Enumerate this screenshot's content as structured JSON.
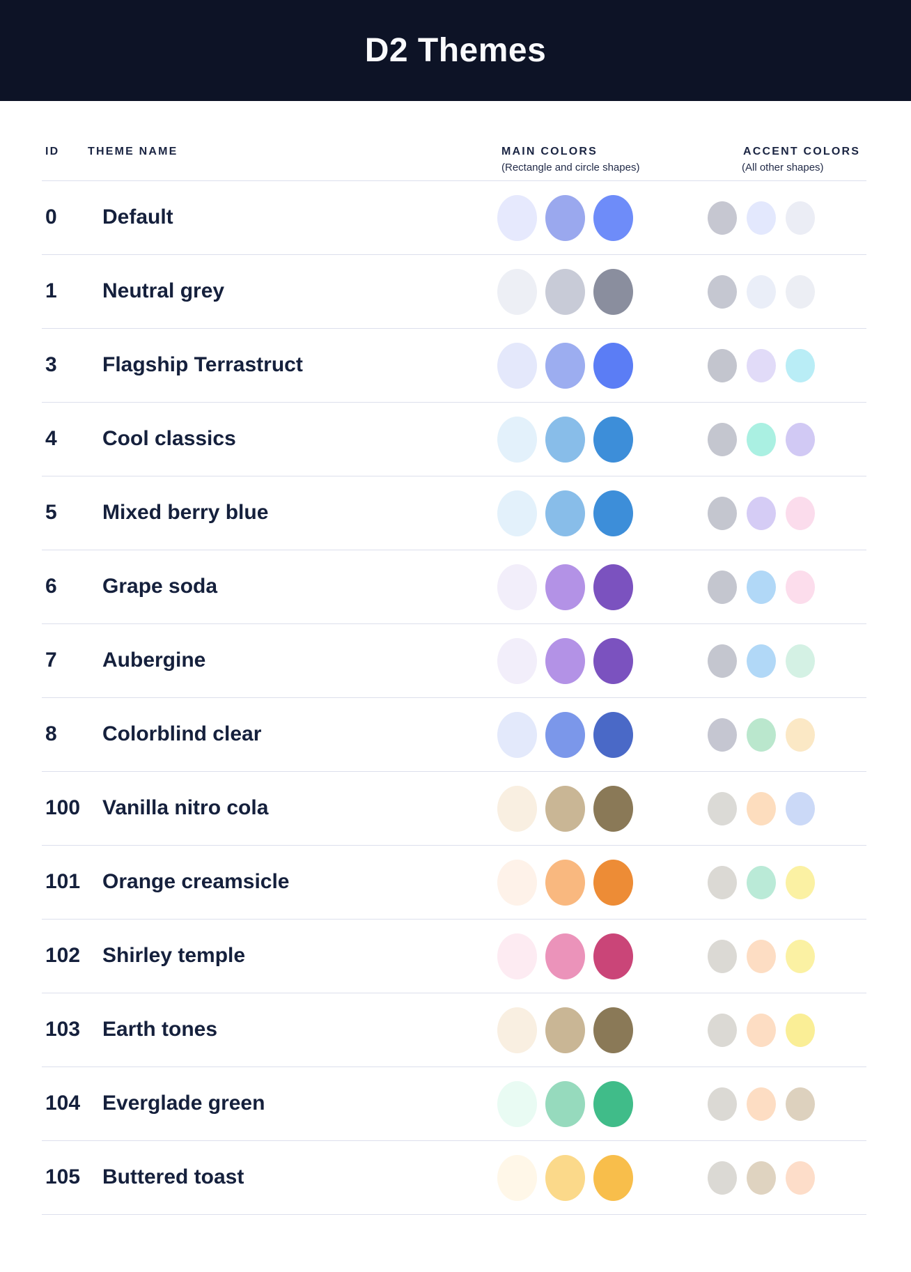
{
  "header": {
    "title": "D2 Themes"
  },
  "table": {
    "columns": {
      "id_label": "ID",
      "name_label": "THEME NAME",
      "main_label": "MAIN COLORS",
      "main_subtitle": "(Rectangle and circle shapes)",
      "accent_label": "ACCENT COLORS",
      "accent_subtitle": "(All other shapes)"
    },
    "rows": [
      {
        "id": "0",
        "name": "Default",
        "main": [
          "#E6E9FD",
          "#9AA8EE",
          "#6E8CF9"
        ],
        "accent": [
          "#C6C7D1",
          "#E3E8FD",
          "#EBEDF5"
        ]
      },
      {
        "id": "1",
        "name": "Neutral grey",
        "main": [
          "#EDEFF5",
          "#C8CBD7",
          "#8A8E9E"
        ],
        "accent": [
          "#C5C7D1",
          "#EAEEF8",
          "#ECEEF4"
        ]
      },
      {
        "id": "3",
        "name": "Flagship Terrastruct",
        "main": [
          "#E4E8FB",
          "#9CADF0",
          "#5B7DF5"
        ],
        "accent": [
          "#C3C5CE",
          "#E1DBF8",
          "#B9EDF6"
        ]
      },
      {
        "id": "4",
        "name": "Cool classics",
        "main": [
          "#E3F1FB",
          "#88BDE9",
          "#3D8ED9"
        ],
        "accent": [
          "#C4C6CF",
          "#AAF0E2",
          "#D1C9F4"
        ]
      },
      {
        "id": "5",
        "name": "Mixed berry blue",
        "main": [
          "#E3F1FB",
          "#88BDE9",
          "#3D8ED9"
        ],
        "accent": [
          "#C4C6CF",
          "#D5CCF5",
          "#FBDCEC"
        ]
      },
      {
        "id": "6",
        "name": "Grape soda",
        "main": [
          "#F2EEFA",
          "#B392E6",
          "#7B52BF"
        ],
        "accent": [
          "#C4C6CF",
          "#B1D8F7",
          "#FCDDEC"
        ]
      },
      {
        "id": "7",
        "name": "Aubergine",
        "main": [
          "#F2EEFA",
          "#B392E6",
          "#7B52BF"
        ],
        "accent": [
          "#C4C6CF",
          "#B1D8F7",
          "#D4F1E4"
        ]
      },
      {
        "id": "8",
        "name": "Colorblind clear",
        "main": [
          "#E3E9FB",
          "#7B97EA",
          "#4A69C7"
        ],
        "accent": [
          "#C5C6D1",
          "#BAE7CD",
          "#FBE8C5"
        ]
      },
      {
        "id": "100",
        "name": "Vanilla nitro cola",
        "main": [
          "#F9EFE1",
          "#C9B695",
          "#8A7957"
        ],
        "accent": [
          "#DBDAD6",
          "#FDDDBE",
          "#CBD9F7"
        ]
      },
      {
        "id": "101",
        "name": "Orange creamsicle",
        "main": [
          "#FEF2E9",
          "#F9B87F",
          "#ED8C36"
        ],
        "accent": [
          "#DBD9D4",
          "#BAEAD7",
          "#FBF1A3"
        ]
      },
      {
        "id": "102",
        "name": "Shirley temple",
        "main": [
          "#FDEBF2",
          "#EB93BA",
          "#CA4578"
        ],
        "accent": [
          "#DBD9D4",
          "#FDDDC3",
          "#FBF1A3"
        ]
      },
      {
        "id": "103",
        "name": "Earth tones",
        "main": [
          "#F9EFE1",
          "#C9B695",
          "#8A7957"
        ],
        "accent": [
          "#DBD9D4",
          "#FDDDC3",
          "#FAEE96"
        ]
      },
      {
        "id": "104",
        "name": "Everglade green",
        "main": [
          "#E9FBF3",
          "#96DABD",
          "#40BC89"
        ],
        "accent": [
          "#DBD9D4",
          "#FDDDC3",
          "#DDD1BE"
        ]
      },
      {
        "id": "105",
        "name": "Buttered toast",
        "main": [
          "#FFF7E8",
          "#FBD98A",
          "#F8BE4B"
        ],
        "accent": [
          "#DBD9D4",
          "#DFD3C0",
          "#FDDDC9"
        ]
      }
    ]
  },
  "colors": {
    "header_bg": "#0D1326",
    "title_text": "#F9FAFD",
    "heading_text": "#1A2442",
    "subtitle_text": "#232C49",
    "row_text": "#15203C",
    "separator": "#DCDFEC",
    "page_bg": "#FFFFFF"
  }
}
